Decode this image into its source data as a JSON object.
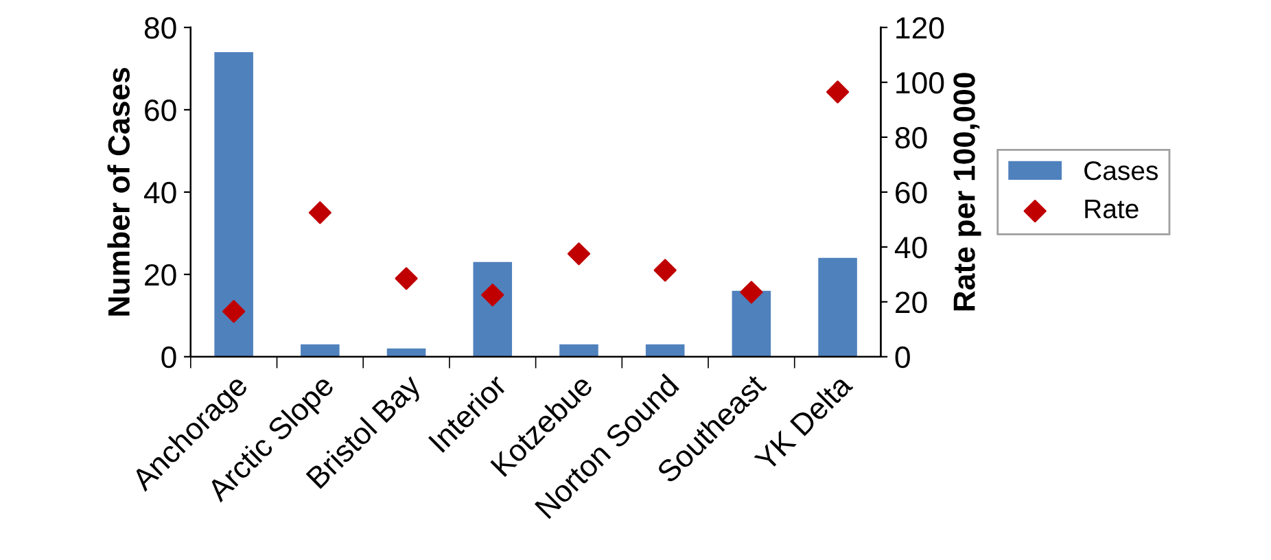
{
  "chart_data": {
    "type": "bar",
    "ylabel": "Number of Cases",
    "y2label": "Rate per 100,000",
    "categories": [
      "Anchorage",
      "Arctic Slope",
      "Bristol Bay",
      "Interior",
      "Kotzebue",
      "Norton Sound",
      "Southeast",
      "YK Delta"
    ],
    "series": [
      {
        "name": "Cases",
        "color": "#4f81bd",
        "values": [
          74,
          3,
          2,
          23,
          3,
          3,
          16,
          24
        ]
      },
      {
        "name": "Rate",
        "type": "scatter",
        "axis": "y2",
        "marker": "diamond",
        "color": "#c00000",
        "values": [
          16.5,
          52.5,
          28.5,
          22.5,
          37.5,
          31.5,
          23.5,
          96.5
        ]
      }
    ],
    "ylim": [
      0,
      80
    ],
    "yticks": [
      0,
      20,
      40,
      60,
      80
    ],
    "y2lim": [
      0,
      120
    ],
    "y2ticks": [
      0,
      20,
      40,
      60,
      80,
      100,
      120
    ],
    "grid": false,
    "legend": "right"
  }
}
